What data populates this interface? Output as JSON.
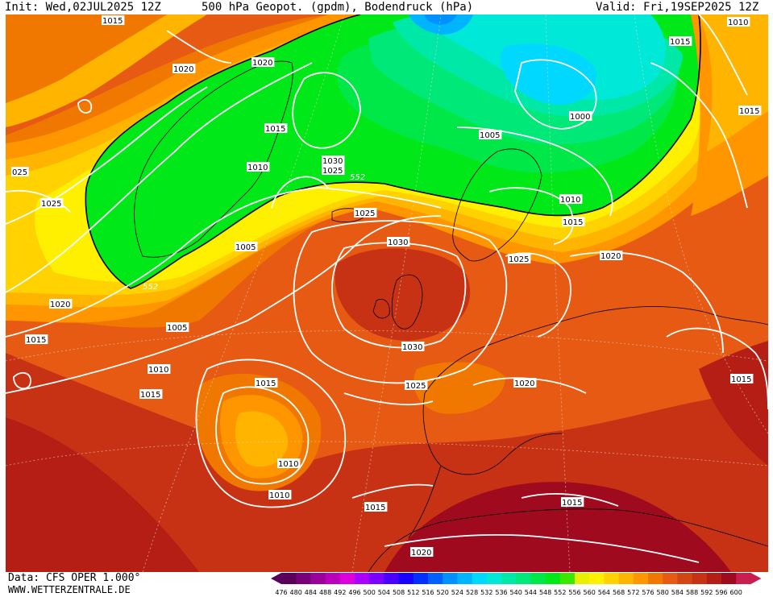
{
  "header": {
    "init": "Init: Wed,02JUL2025 12Z",
    "title": "500 hPa Geopot. (gpdm), Bodendruck (hPa)",
    "valid": "Valid: Fri,19SEP2025 12Z"
  },
  "footer": {
    "data_source": "Data: CFS OPER 1.000°",
    "url": "WWW.WETTERZENTRALE.DE"
  },
  "legend": {
    "ticks": [
      "476",
      "480",
      "484",
      "488",
      "492",
      "496",
      "500",
      "504",
      "508",
      "512",
      "516",
      "520",
      "524",
      "528",
      "532",
      "536",
      "540",
      "544",
      "548",
      "552",
      "556",
      "560",
      "564",
      "568",
      "572",
      "576",
      "580",
      "584",
      "588",
      "592",
      "596",
      "600"
    ],
    "colors": [
      "#5a005a",
      "#7a007a",
      "#9a009a",
      "#bb00bb",
      "#dd00dd",
      "#aa00ff",
      "#7a00ff",
      "#4a00ff",
      "#1a00ff",
      "#0030ff",
      "#0060ff",
      "#0090ff",
      "#00b4ff",
      "#00d8ff",
      "#00e8d8",
      "#00e8a8",
      "#00e878",
      "#00e848",
      "#00e818",
      "#3ae800",
      "#e8f000",
      "#fff000",
      "#ffd200",
      "#ffb400",
      "#ff9600",
      "#f07800",
      "#e65a14",
      "#d24614",
      "#c83214",
      "#b41e14",
      "#a00a1e",
      "#c81e50"
    ]
  },
  "map_labels": {
    "geopot": [
      {
        "text": "552"
      },
      {
        "text": "552"
      }
    ],
    "isobars": [
      {
        "text": "1015"
      },
      {
        "text": "1020"
      },
      {
        "text": "1020"
      },
      {
        "text": "1015"
      },
      {
        "text": "1010"
      },
      {
        "text": "1030"
      },
      {
        "text": "1025"
      },
      {
        "text": "1005"
      },
      {
        "text": "1000"
      },
      {
        "text": "1010"
      },
      {
        "text": "1010"
      },
      {
        "text": "1015"
      },
      {
        "text": "1015"
      },
      {
        "text": "1010"
      },
      {
        "text": "025"
      },
      {
        "text": "1025"
      },
      {
        "text": "1005"
      },
      {
        "text": "1025"
      },
      {
        "text": "1030"
      },
      {
        "text": "1025"
      },
      {
        "text": "1020"
      },
      {
        "text": "1020"
      },
      {
        "text": "1015"
      },
      {
        "text": "1005"
      },
      {
        "text": "1010"
      },
      {
        "text": "1030"
      },
      {
        "text": "1015"
      },
      {
        "text": "1025"
      },
      {
        "text": "1020"
      },
      {
        "text": "1015"
      },
      {
        "text": "1015"
      },
      {
        "text": "1010"
      },
      {
        "text": "1015"
      },
      {
        "text": "1020"
      },
      {
        "text": "1015"
      },
      {
        "text": "1015"
      }
    ]
  }
}
